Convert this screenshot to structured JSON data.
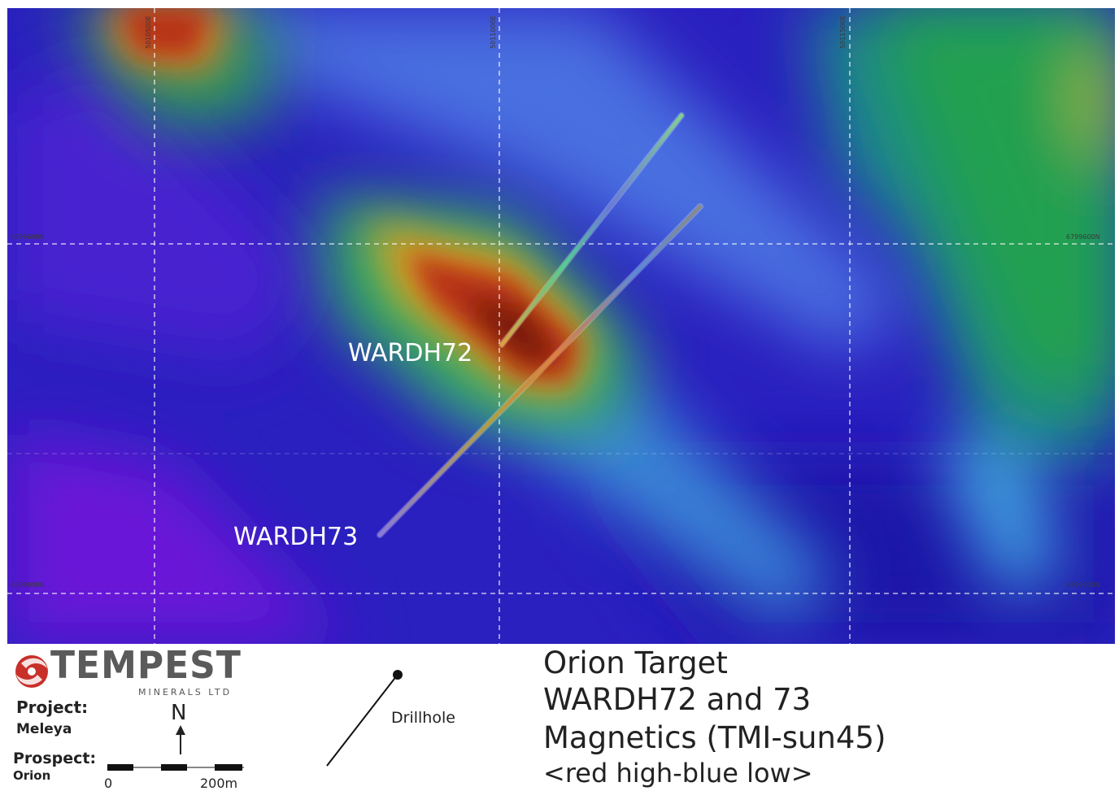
{
  "map": {
    "drillholes": [
      {
        "label": "WARDH72"
      },
      {
        "label": "WARDH73"
      }
    ],
    "grid_labels": {
      "easting_top_left": "5010500E",
      "easting_top_mid": "5011000E",
      "easting_top_right": "5011500E",
      "northing_left_upper": "6799600N",
      "northing_right_upper": "6799600N",
      "northing_left_lower": "6799000N",
      "northing_right_lower": "6799000N"
    },
    "colors": {
      "high": "#8b1a0c",
      "mid": "#21a53a",
      "low": "#2a1fbf"
    }
  },
  "legend": {
    "logo": {
      "word": "TEMPEST",
      "sub": "MINERALS LTD"
    },
    "project_label": "Project:",
    "project_value": "Meleya",
    "prospect_label": "Prospect:",
    "prospect_value": "Orion",
    "north_label": "N",
    "scale_start": "0",
    "scale_end": "200m",
    "drillhole_label": "Drillhole",
    "title_lines": [
      "Orion Target",
      "WARDH72 and 73",
      "Magnetics (TMI-sun45)",
      "<red high-blue low>"
    ]
  }
}
